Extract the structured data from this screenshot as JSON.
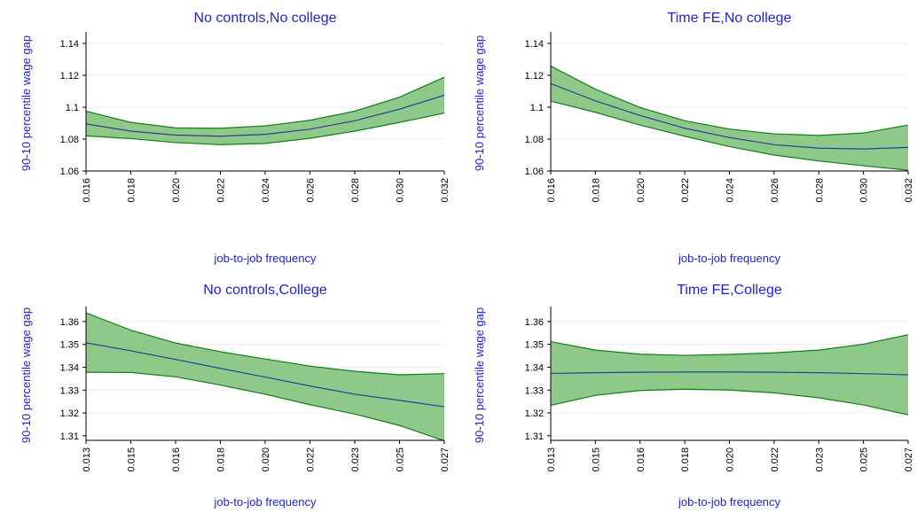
{
  "chart_data": [
    {
      "type": "area",
      "title": "No controls,No college",
      "xlabel": "job-to-job frequency",
      "ylabel": "90-10 percentile wage gap",
      "x_tick_labels": [
        "0.016",
        "0.018",
        "0.020",
        "0.022",
        "0.024",
        "0.026",
        "0.028",
        "0.030",
        "0.032"
      ],
      "x": [
        0.016,
        0.018,
        0.02,
        0.022,
        0.024,
        0.026,
        0.028,
        0.03,
        0.032
      ],
      "y_ticks": [
        1.06,
        1.08,
        1.1,
        1.12,
        1.14
      ],
      "y_tick_labels": [
        "1.06",
        "1.08",
        "1.1",
        "1.12",
        "1.14"
      ],
      "ylim": [
        1.06,
        1.145
      ],
      "grid": true,
      "series": [
        {
          "role": "estimate",
          "values": [
            1.0895,
            1.085,
            1.0825,
            1.0818,
            1.083,
            1.0862,
            1.0915,
            1.0988,
            1.1075
          ]
        },
        {
          "role": "upper",
          "values": [
            1.0975,
            1.0905,
            1.087,
            1.0868,
            1.0883,
            1.0918,
            1.0975,
            1.1063,
            1.1188
          ]
        },
        {
          "role": "lower",
          "values": [
            1.082,
            1.0803,
            1.0778,
            1.0765,
            1.0773,
            1.0805,
            1.085,
            1.0905,
            1.0963
          ]
        }
      ],
      "colors": {
        "line": "#2e3d8f",
        "band_fill": "#8fc98a",
        "band_edge": "#137d17"
      }
    },
    {
      "type": "area",
      "title": "Time FE,No college",
      "xlabel": "job-to-job frequency",
      "ylabel": "90-10 percentile wage gap",
      "x_tick_labels": [
        "0.016",
        "0.018",
        "0.020",
        "0.022",
        "0.024",
        "0.026",
        "0.028",
        "0.030",
        "0.032"
      ],
      "x": [
        0.016,
        0.018,
        0.02,
        0.022,
        0.024,
        0.026,
        0.028,
        0.03,
        0.032
      ],
      "y_ticks": [
        1.06,
        1.08,
        1.1,
        1.12,
        1.14
      ],
      "y_tick_labels": [
        "1.06",
        "1.08",
        "1.1",
        "1.12",
        "1.14"
      ],
      "ylim": [
        1.06,
        1.145
      ],
      "grid": true,
      "series": [
        {
          "role": "estimate",
          "values": [
            1.1148,
            1.104,
            1.0948,
            1.0868,
            1.081,
            1.0765,
            1.0743,
            1.0738,
            1.0748
          ]
        },
        {
          "role": "upper",
          "values": [
            1.1258,
            1.1113,
            1.0998,
            1.0915,
            1.0863,
            1.0833,
            1.0823,
            1.0838,
            1.0888
          ]
        },
        {
          "role": "lower",
          "values": [
            1.1038,
            1.0968,
            1.0888,
            1.0818,
            1.0753,
            1.07,
            1.0663,
            1.0633,
            1.0605
          ]
        }
      ],
      "colors": {
        "line": "#2e3d8f",
        "band_fill": "#8fc98a",
        "band_edge": "#137d17"
      }
    },
    {
      "type": "area",
      "title": "No controls,College",
      "xlabel": "job-to-job frequency",
      "ylabel": "90-10 percentile wage gap",
      "x_tick_labels": [
        "0.013",
        "0.015",
        "0.016",
        "0.018",
        "0.020",
        "0.022",
        "0.023",
        "0.025",
        "0.027"
      ],
      "x": [
        0.013,
        0.015,
        0.016,
        0.018,
        0.02,
        0.022,
        0.023,
        0.025,
        0.027
      ],
      "y_ticks": [
        1.31,
        1.32,
        1.33,
        1.34,
        1.35,
        1.36
      ],
      "y_tick_labels": [
        "1.31",
        "1.32",
        "1.33",
        "1.34",
        "1.35",
        "1.36"
      ],
      "ylim": [
        1.308,
        1.365
      ],
      "grid": true,
      "series": [
        {
          "role": "estimate",
          "values": [
            1.3507,
            1.3472,
            1.3434,
            1.3395,
            1.3357,
            1.3318,
            1.3282,
            1.3255,
            1.3227
          ]
        },
        {
          "role": "upper",
          "values": [
            1.3638,
            1.3562,
            1.3506,
            1.3468,
            1.3436,
            1.3405,
            1.3382,
            1.3367,
            1.3372
          ]
        },
        {
          "role": "lower",
          "values": [
            1.3378,
            1.3377,
            1.3358,
            1.3322,
            1.3282,
            1.3236,
            1.3195,
            1.3145,
            1.3078
          ]
        }
      ],
      "colors": {
        "line": "#2e3d8f",
        "band_fill": "#8fc98a",
        "band_edge": "#137d17"
      }
    },
    {
      "type": "area",
      "title": "Time FE,College",
      "xlabel": "job-to-job frequency",
      "ylabel": "90-10 percentile wage gap",
      "x_tick_labels": [
        "0.013",
        "0.015",
        "0.016",
        "0.018",
        "0.020",
        "0.022",
        "0.023",
        "0.025",
        "0.027"
      ],
      "x": [
        0.013,
        0.015,
        0.016,
        0.018,
        0.02,
        0.022,
        0.023,
        0.025,
        0.027
      ],
      "y_ticks": [
        1.31,
        1.32,
        1.33,
        1.34,
        1.35,
        1.36
      ],
      "y_tick_labels": [
        "1.31",
        "1.32",
        "1.33",
        "1.34",
        "1.35",
        "1.36"
      ],
      "ylim": [
        1.308,
        1.365
      ],
      "grid": true,
      "series": [
        {
          "role": "estimate",
          "values": [
            1.3373,
            1.3376,
            1.3378,
            1.3379,
            1.3379,
            1.3378,
            1.3376,
            1.3372,
            1.3367
          ]
        },
        {
          "role": "upper",
          "values": [
            1.3512,
            1.3475,
            1.3457,
            1.3452,
            1.3456,
            1.3463,
            1.3475,
            1.3501,
            1.3542
          ]
        },
        {
          "role": "lower",
          "values": [
            1.3233,
            1.3277,
            1.3298,
            1.3304,
            1.33,
            1.3288,
            1.3266,
            1.3235,
            1.3192
          ]
        }
      ],
      "colors": {
        "line": "#2e3d8f",
        "band_fill": "#8fc98a",
        "band_edge": "#137d17"
      }
    }
  ]
}
